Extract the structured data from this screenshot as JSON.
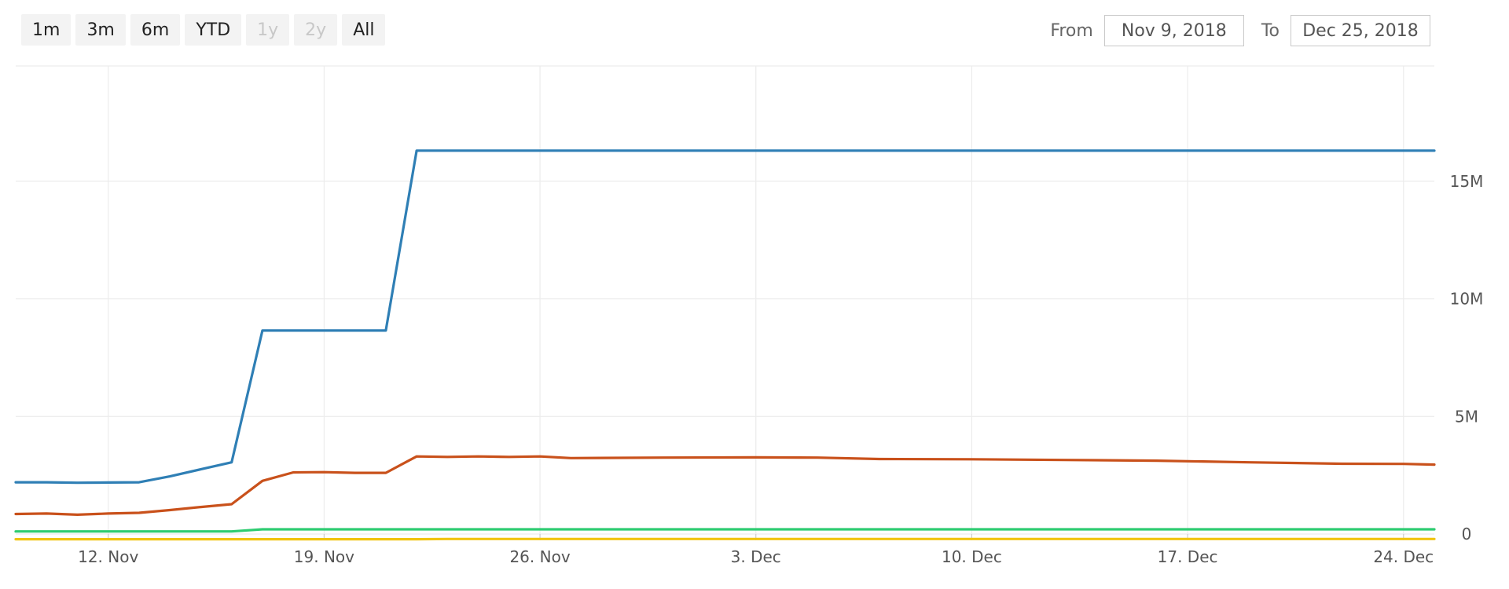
{
  "range_selector": {
    "buttons": [
      {
        "label": "1m",
        "enabled": true
      },
      {
        "label": "3m",
        "enabled": true
      },
      {
        "label": "6m",
        "enabled": true
      },
      {
        "label": "YTD",
        "enabled": true
      },
      {
        "label": "1y",
        "enabled": false
      },
      {
        "label": "2y",
        "enabled": false
      },
      {
        "label": "All",
        "enabled": true
      }
    ],
    "from_label": "From",
    "from_value": "Nov 9, 2018",
    "to_label": "To",
    "to_value": "Dec 25, 2018"
  },
  "chart_data": {
    "type": "line",
    "title": "",
    "xlabel": "",
    "ylabel": "",
    "x_ticks": [
      "12. Nov",
      "19. Nov",
      "26. Nov",
      "3. Dec",
      "10. Dec",
      "17. Dec",
      "24. Dec"
    ],
    "x_tick_dates": [
      "2018-11-12",
      "2018-11-19",
      "2018-11-26",
      "2018-12-03",
      "2018-12-10",
      "2018-12-17",
      "2018-12-24"
    ],
    "y_ticks": [
      "0",
      "5M",
      "10M",
      "15M"
    ],
    "y_tick_values": [
      0,
      5000000,
      10000000,
      15000000
    ],
    "xlim": [
      "2018-11-09",
      "2018-12-25"
    ],
    "ylim": [
      0,
      19900000
    ],
    "grid": true,
    "y_axis_side": "right",
    "series": [
      {
        "color": "#2f7fb5",
        "points": [
          [
            "2018-11-09",
            2200000
          ],
          [
            "2018-11-10",
            2200000
          ],
          [
            "2018-11-11",
            2180000
          ],
          [
            "2018-11-12",
            2190000
          ],
          [
            "2018-11-13",
            2200000
          ],
          [
            "2018-11-14",
            2450000
          ],
          [
            "2018-11-15",
            2750000
          ],
          [
            "2018-11-16",
            3050000
          ],
          [
            "2018-11-17",
            8650000
          ],
          [
            "2018-11-18",
            8650000
          ],
          [
            "2018-11-19",
            8650000
          ],
          [
            "2018-11-20",
            8650000
          ],
          [
            "2018-11-21",
            8650000
          ],
          [
            "2018-11-22",
            16300000
          ],
          [
            "2018-11-23",
            16300000
          ],
          [
            "2018-11-26",
            16300000
          ],
          [
            "2018-12-03",
            16300000
          ],
          [
            "2018-12-10",
            16300000
          ],
          [
            "2018-12-17",
            16300000
          ],
          [
            "2018-12-25",
            16300000
          ]
        ]
      },
      {
        "color": "#c9511b",
        "points": [
          [
            "2018-11-09",
            850000
          ],
          [
            "2018-11-10",
            870000
          ],
          [
            "2018-11-11",
            820000
          ],
          [
            "2018-11-12",
            870000
          ],
          [
            "2018-11-13",
            900000
          ],
          [
            "2018-11-14",
            1020000
          ],
          [
            "2018-11-15",
            1150000
          ],
          [
            "2018-11-16",
            1270000
          ],
          [
            "2018-11-17",
            2260000
          ],
          [
            "2018-11-18",
            2620000
          ],
          [
            "2018-11-19",
            2630000
          ],
          [
            "2018-11-20",
            2600000
          ],
          [
            "2018-11-21",
            2600000
          ],
          [
            "2018-11-22",
            3300000
          ],
          [
            "2018-11-23",
            3280000
          ],
          [
            "2018-11-24",
            3300000
          ],
          [
            "2018-11-25",
            3280000
          ],
          [
            "2018-11-26",
            3300000
          ],
          [
            "2018-11-27",
            3230000
          ],
          [
            "2018-11-30",
            3250000
          ],
          [
            "2018-12-03",
            3260000
          ],
          [
            "2018-12-05",
            3250000
          ],
          [
            "2018-12-07",
            3190000
          ],
          [
            "2018-12-10",
            3180000
          ],
          [
            "2018-12-13",
            3150000
          ],
          [
            "2018-12-16",
            3120000
          ],
          [
            "2018-12-19",
            3050000
          ],
          [
            "2018-12-22",
            2990000
          ],
          [
            "2018-12-24",
            2980000
          ],
          [
            "2018-12-25",
            2950000
          ]
        ]
      },
      {
        "color": "#2ecc71",
        "points": [
          [
            "2018-11-09",
            110000
          ],
          [
            "2018-11-12",
            110000
          ],
          [
            "2018-11-16",
            110000
          ],
          [
            "2018-11-17",
            200000
          ],
          [
            "2018-11-22",
            200000
          ],
          [
            "2018-12-25",
            200000
          ]
        ]
      },
      {
        "color": "#f1c40f",
        "points": [
          [
            "2018-11-09",
            -220000
          ],
          [
            "2018-11-22",
            -220000
          ],
          [
            "2018-11-23",
            -210000
          ],
          [
            "2018-12-25",
            -210000
          ]
        ]
      }
    ]
  }
}
